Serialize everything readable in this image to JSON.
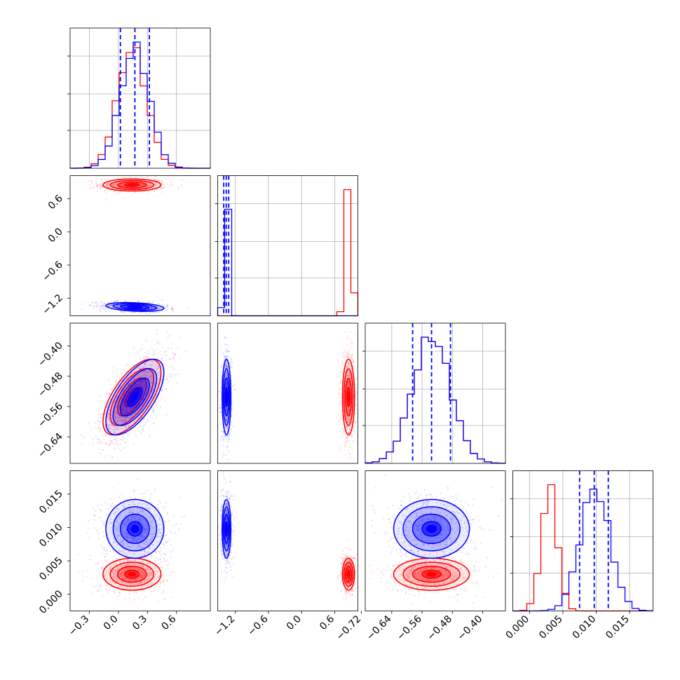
{
  "chart_data": {
    "type": "corner",
    "grid": true,
    "parameters": [
      {
        "ticks": [
          -0.3,
          0.0,
          0.3,
          0.6
        ],
        "tick_labels": [
          "−0.3",
          "0.0",
          "0.3",
          "0.6"
        ],
        "range": [
          -0.5,
          0.95
        ]
      },
      {
        "ticks": [
          -1.2,
          -0.6,
          0.0,
          0.6
        ],
        "tick_labels": [
          "−1.2",
          "−0.6",
          "0.0",
          "0.6"
        ],
        "range": [
          -1.52,
          1.02
        ]
      },
      {
        "ticks": [
          -0.72,
          -0.64,
          -0.56,
          -0.48,
          -0.4
        ],
        "tick_labels": [
          "−0.72",
          "−0.64",
          "−0.56",
          "−0.48",
          "−0.40"
        ],
        "range": [
          -0.71,
          -0.34
        ]
      },
      {
        "ticks": [
          0.0,
          0.005,
          0.01,
          0.015
        ],
        "tick_labels": [
          "0.000",
          "0.005",
          "0.010",
          "0.015"
        ],
        "range": [
          -0.0025,
          0.0185
        ]
      }
    ],
    "series": [
      {
        "color": "#ff0000",
        "mean": [
          0.14,
          0.85,
          -0.535,
          0.003
        ],
        "std": [
          0.15,
          0.055,
          0.05,
          0.0012
        ],
        "corr": [
          [
            1,
            0,
            0.65,
            0
          ],
          [
            0,
            1,
            0,
            0
          ],
          [
            0.65,
            0,
            1,
            0
          ],
          [
            0,
            0,
            0,
            1
          ]
        ]
      },
      {
        "color": "#0000ff",
        "mean": [
          0.17,
          -1.36,
          -0.535,
          0.0098
        ],
        "std": [
          0.15,
          0.04,
          0.05,
          0.0022
        ],
        "corr": [
          [
            1,
            -0.3,
            0.65,
            0
          ],
          [
            -0.3,
            1,
            0,
            0
          ],
          [
            0.65,
            0,
            1,
            0
          ],
          [
            0,
            0,
            0,
            1
          ]
        ]
      }
    ],
    "quantiles": [
      {
        "param": 0,
        "color": "#0000ff",
        "values": [
          0.02,
          0.17,
          0.32
        ]
      },
      {
        "param": 1,
        "color": "#0000ff",
        "values": [
          -1.41,
          -1.365,
          -1.32
        ]
      },
      {
        "param": 2,
        "color": "#0000ff",
        "values": [
          -0.585,
          -0.535,
          -0.485
        ]
      },
      {
        "param": 3,
        "color": "#0000ff",
        "values": [
          0.0075,
          0.0097,
          0.0118
        ]
      }
    ],
    "contour_levels_sigma": [
      0.5,
      1.0,
      1.5,
      2.0
    ]
  }
}
